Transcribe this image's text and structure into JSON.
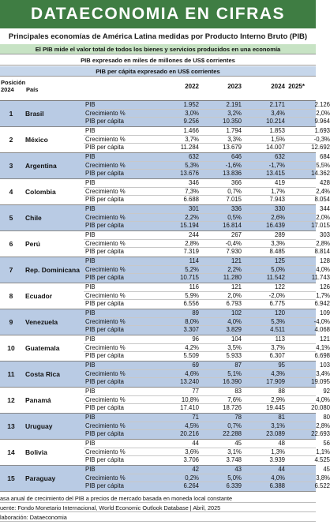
{
  "banner": "DATAECONOMIA EN CIFRAS",
  "subtitle": "Principales economías de América Latina medidas por Producto Interno Bruto (PIB)",
  "notes": [
    "El PIB mide el valor total de todos los bienes y servicios producidos en una economía",
    "PIB expresado en miles de millones de US$ corrientes",
    "PIB per cápita expresado en US$ corrientes"
  ],
  "header": {
    "position": "Posición 2024",
    "country": "País",
    "years": [
      "2022",
      "2023",
      "2024",
      "2025*"
    ]
  },
  "indicators": [
    "PIB",
    "Crecimiento %",
    "PIB per cápita"
  ],
  "countries": [
    {
      "rank": "1",
      "name": "Brasil",
      "values": [
        [
          "1.952",
          "2.191",
          "2.171",
          "2.126"
        ],
        [
          "3,0%",
          "3,2%",
          "3,4%",
          "2,0%"
        ],
        [
          "9.256",
          "10.350",
          "10.214",
          "9.964"
        ]
      ]
    },
    {
      "rank": "2",
      "name": "México",
      "values": [
        [
          "1.466",
          "1.794",
          "1.853",
          "1.693"
        ],
        [
          "3,7%",
          "3,3%",
          "1,5%",
          "-0,3%"
        ],
        [
          "11.284",
          "13.679",
          "14.007",
          "12.692"
        ]
      ]
    },
    {
      "rank": "3",
      "name": "Argentina",
      "values": [
        [
          "632",
          "646",
          "632",
          "684"
        ],
        [
          "5,3%",
          "-1,6%",
          "-1,7%",
          "5,5%"
        ],
        [
          "13.676",
          "13.836",
          "13.415",
          "14.362"
        ]
      ]
    },
    {
      "rank": "4",
      "name": "Colombia",
      "values": [
        [
          "346",
          "366",
          "419",
          "428"
        ],
        [
          "7,3%",
          "0,7%",
          "1,7%",
          "2,4%"
        ],
        [
          "6.688",
          "7.015",
          "7.943",
          "8.054"
        ]
      ]
    },
    {
      "rank": "5",
      "name": "Chile",
      "values": [
        [
          "301",
          "336",
          "330",
          "344"
        ],
        [
          "2,2%",
          "0,5%",
          "2,6%",
          "2,0%"
        ],
        [
          "15.194",
          "16.814",
          "16.439",
          "17.015"
        ]
      ]
    },
    {
      "rank": "6",
      "name": "Perú",
      "values": [
        [
          "244",
          "267",
          "289",
          "303"
        ],
        [
          "2,8%",
          "-0,4%",
          "3,3%",
          "2,8%"
        ],
        [
          "7.319",
          "7.930",
          "8.485",
          "8.814"
        ]
      ]
    },
    {
      "rank": "7",
      "name": "Rep. Dominicana",
      "values": [
        [
          "114",
          "121",
          "125",
          "128"
        ],
        [
          "5,2%",
          "2,2%",
          "5,0%",
          "4,0%"
        ],
        [
          "10.715",
          "11.280",
          "11.542",
          "11.743"
        ]
      ]
    },
    {
      "rank": "8",
      "name": "Ecuador",
      "values": [
        [
          "116",
          "121",
          "122",
          "126"
        ],
        [
          "5,9%",
          "2,0%",
          "-2,0%",
          "1,7%"
        ],
        [
          "6.556",
          "6.793",
          "6.775",
          "6.942"
        ]
      ]
    },
    {
      "rank": "9",
      "name": "Venezuela",
      "values": [
        [
          "89",
          "102",
          "120",
          "109"
        ],
        [
          "8,0%",
          "4,0%",
          "5,3%",
          "-4,0%"
        ],
        [
          "3.307",
          "3.829",
          "4.511",
          "4.068"
        ]
      ]
    },
    {
      "rank": "10",
      "name": "Guatemala",
      "values": [
        [
          "96",
          "104",
          "113",
          "121"
        ],
        [
          "4,2%",
          "3,5%",
          "3,7%",
          "4,1%"
        ],
        [
          "5.509",
          "5.933",
          "6.307",
          "6.698"
        ]
      ]
    },
    {
      "rank": "11",
      "name": "Costa Rica",
      "values": [
        [
          "69",
          "87",
          "95",
          "103"
        ],
        [
          "4,6%",
          "5,1%",
          "4,3%",
          "3,4%"
        ],
        [
          "13.240",
          "16.390",
          "17.909",
          "19.095"
        ]
      ]
    },
    {
      "rank": "12",
      "name": "Panamá",
      "values": [
        [
          "77",
          "83",
          "88",
          "92"
        ],
        [
          "10,8%",
          "7,6%",
          "2,9%",
          "4,0%"
        ],
        [
          "17.410",
          "18.726",
          "19.445",
          "20.080"
        ]
      ]
    },
    {
      "rank": "13",
      "name": "Uruguay",
      "values": [
        [
          "71",
          "78",
          "81",
          "80"
        ],
        [
          "4,5%",
          "0,7%",
          "3,1%",
          "2,8%"
        ],
        [
          "20.216",
          "22.288",
          "23.089",
          "22.693"
        ]
      ]
    },
    {
      "rank": "14",
      "name": "Bolivia",
      "values": [
        [
          "44",
          "45",
          "48",
          "56"
        ],
        [
          "3,6%",
          "3,1%",
          "1,3%",
          "1,1%"
        ],
        [
          "3.706",
          "3.748",
          "3.939",
          "4.525"
        ]
      ]
    },
    {
      "rank": "15",
      "name": "Paraguay",
      "values": [
        [
          "42",
          "43",
          "44",
          "45"
        ],
        [
          "0,2%",
          "5,0%",
          "4,0%",
          "3,8%"
        ],
        [
          "6.264",
          "6.339",
          "6.388",
          "6.522"
        ]
      ]
    }
  ],
  "footnotes": [
    "asa anual de crecimiento del PIB a precios de mercado basada en moneda local constante",
    "uente: Fondo Monetario Internacional, World Economic Outlook Database | Abril, 2025",
    "laboración: Dataeconomia"
  ],
  "colors": {
    "banner": "#3f7d43",
    "note_green": "#c7e3c4",
    "note_blue": "#c6d6ea",
    "row_alt": "#b9cbe4"
  }
}
